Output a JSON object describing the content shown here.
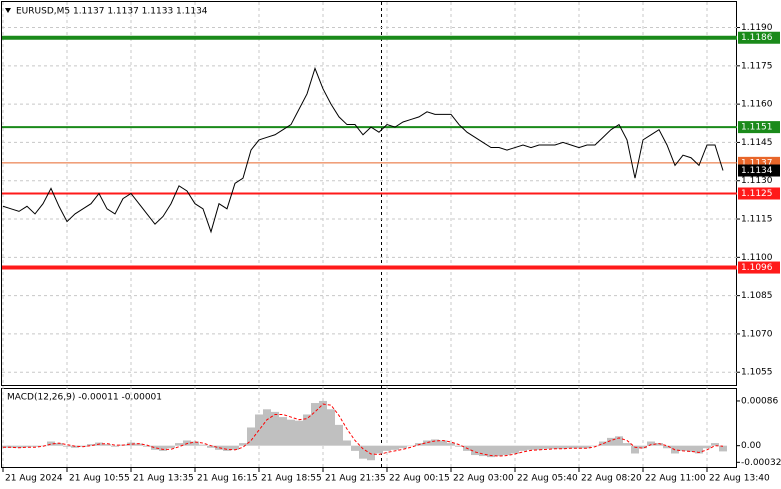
{
  "chart_data": [
    {
      "type": "line",
      "title": "EURUSD,M5  1.1137 1.1137 1.1133 1.1134",
      "color": "#000000",
      "grid": true,
      "categories": [
        "21 Aug 2024",
        null,
        null,
        null,
        null,
        null,
        null,
        null,
        "21 Aug 10:55",
        null,
        null,
        null,
        null,
        null,
        null,
        null,
        "21 Aug 13:35",
        null,
        null,
        null,
        null,
        null,
        null,
        null,
        "21 Aug 16:15",
        null,
        null,
        null,
        null,
        null,
        null,
        null,
        "21 Aug 18:55",
        null,
        null,
        null,
        null,
        null,
        null,
        null,
        "21 Aug 21:35",
        null,
        null,
        null,
        null,
        null,
        null,
        null,
        "22 Aug 00:15",
        null,
        null,
        null,
        null,
        null,
        null,
        null,
        "22 Aug 03:00",
        null,
        null,
        null,
        null,
        null,
        null,
        null,
        "22 Aug 05:40",
        null,
        null,
        null,
        null,
        null,
        null,
        null,
        "22 Aug 08:20",
        null,
        null,
        null,
        null,
        null,
        null,
        null,
        "22 Aug 11:00",
        null,
        null,
        null,
        null,
        null,
        null,
        null,
        "22 Aug 13:40",
        null,
        null
      ],
      "values": [
        1.112,
        1.1119,
        1.1118,
        1.112,
        1.1117,
        1.1121,
        1.1127,
        1.112,
        1.1114,
        1.1117,
        1.1119,
        1.1121,
        1.1125,
        1.1119,
        1.1117,
        1.1123,
        1.1125,
        1.1121,
        1.1117,
        1.1113,
        1.1116,
        1.1121,
        1.1128,
        1.1126,
        1.1121,
        1.1119,
        1.111,
        1.1121,
        1.1119,
        1.1129,
        1.1131,
        1.1142,
        1.1146,
        1.1147,
        1.1148,
        1.115,
        1.1152,
        1.1158,
        1.1164,
        1.1174,
        1.1166,
        1.116,
        1.1155,
        1.1152,
        1.1152,
        1.1148,
        1.1151,
        1.1149,
        1.1152,
        1.1151,
        1.1153,
        1.1154,
        1.1155,
        1.1157,
        1.1156,
        1.1156,
        1.1156,
        1.1152,
        1.1149,
        1.1147,
        1.1145,
        1.1143,
        1.1143,
        1.1142,
        1.1143,
        1.1144,
        1.1143,
        1.1144,
        1.1144,
        1.1144,
        1.1145,
        1.1144,
        1.1143,
        1.1144,
        1.1144,
        1.1147,
        1.115,
        1.1152,
        1.1146,
        1.1131,
        1.1146,
        1.1148,
        1.115,
        1.1144,
        1.1136,
        1.114,
        1.1139,
        1.1136,
        1.1144,
        1.1144,
        1.1134
      ],
      "ylim": [
        1.105,
        1.12
      ],
      "yticks": [
        {
          "value": 1.119,
          "label": "1.1190"
        },
        1.1175,
        {
          "value": 1.116,
          "label": "1.1160"
        },
        1.1145,
        {
          "value": 1.113,
          "label": "1.1130"
        },
        1.1115,
        {
          "value": 1.11,
          "label": "1.1100"
        },
        1.1085,
        {
          "value": 1.107,
          "label": "1.1070"
        },
        1.1055
      ],
      "levels": [
        {
          "value": 1.1186,
          "color": "#1a8a1a",
          "style": "thick"
        },
        {
          "value": 1.1151,
          "color": "#1a8a1a",
          "style": "normal"
        },
        {
          "value": 1.1137,
          "color": "#e8662a",
          "style": "thin"
        },
        {
          "value": 1.1134,
          "color": "#000000",
          "style": "none"
        },
        {
          "value": 1.1125,
          "color": "#ff1a1a",
          "style": "normal"
        },
        {
          "value": 1.1096,
          "color": "#ff1a1a",
          "style": "thick"
        }
      ]
    },
    {
      "type": "macd",
      "title": "MACD(12,26,9) -0.00011 -0.00001",
      "ylim": [
        -0.00041,
        0.00109
      ],
      "yticks": [
        0.00086,
        {
          "value": 0,
          "label": "0.00"
        },
        -0.00032
      ],
      "series": [
        {
          "color": "#c0c0c0",
          "style": "bar",
          "values": [
            -4e-05,
            -4e-05,
            -4e-05,
            -3e-05,
            -2e-05,
            0,
            8e-05,
            5e-05,
            -2e-05,
            -4e-05,
            -2e-05,
            3e-05,
            6e-05,
            3e-05,
            -2e-05,
            2e-05,
            6e-05,
            4e-05,
            -2e-05,
            -8e-05,
            -0.0001,
            -5e-05,
            5e-05,
            0.0001,
            8e-05,
            2e-05,
            -4e-05,
            -8e-05,
            -0.0001,
            -8e-05,
            5e-05,
            0.00035,
            0.0006,
            0.0007,
            0.00065,
            0.00055,
            0.0005,
            0.00048,
            0.0006,
            0.00082,
            0.00086,
            0.0007,
            0.0004,
            0.0001,
            -0.0001,
            -0.00025,
            -0.00028,
            -0.00015,
            -0.0001,
            -8e-05,
            -5e-05,
            0,
            5e-05,
            0.0001,
            0.00012,
            0.0001,
            5e-05,
            -2e-05,
            -0.0001,
            -0.00018,
            -0.0002,
            -0.00022,
            -0.0002,
            -0.00018,
            -0.00015,
            -0.0001,
            -8e-05,
            -8e-05,
            -6e-05,
            -6e-05,
            -6e-05,
            -5e-05,
            -5e-05,
            -5e-05,
            0,
            8e-05,
            0.00015,
            0.00018,
            5e-05,
            -0.00015,
            -5e-05,
            8e-05,
            5e-05,
            -5e-05,
            -0.00015,
            -0.0001,
            -0.00012,
            -0.00015,
            -5e-05,
            5e-05,
            -0.00011
          ]
        },
        {
          "color": "#ff0000",
          "style": "dashed-line",
          "values": [
            -3e-05,
            -3e-05,
            -4e-05,
            -3e-05,
            -3e-05,
            -1e-05,
            3e-05,
            5e-05,
            2e-05,
            -1e-05,
            -2e-05,
            0,
            3e-05,
            4e-05,
            1e-05,
            1e-05,
            3e-05,
            4e-05,
            1e-05,
            -4e-05,
            -7e-05,
            -7e-05,
            -2e-05,
            4e-05,
            7e-05,
            5e-05,
            0,
            -4e-05,
            -7e-05,
            -8e-05,
            -3e-05,
            0.0001,
            0.0003,
            0.0005,
            0.0006,
            0.0006,
            0.00055,
            0.0005,
            0.00052,
            0.00065,
            0.0008,
            0.00078,
            0.00058,
            0.00032,
            0.0001,
            -6e-05,
            -0.00016,
            -0.00017,
            -0.00013,
            -0.0001,
            -7e-05,
            -3e-05,
            2e-05,
            6e-05,
            9e-05,
            0.0001,
            7e-05,
            2e-05,
            -5e-05,
            -0.00012,
            -0.00016,
            -0.00019,
            -0.0002,
            -0.00019,
            -0.00016,
            -0.00012,
            -9e-05,
            -8e-05,
            -7e-05,
            -6e-05,
            -6e-05,
            -5e-05,
            -5e-05,
            -5e-05,
            -2e-05,
            4e-05,
            0.0001,
            0.00015,
            0.0001,
            -3e-05,
            -5e-05,
            2e-05,
            4e-05,
            0,
            -8e-05,
            -0.0001,
            -0.00011,
            -0.00013,
            -8e-05,
            0,
            -1e-05
          ]
        }
      ]
    }
  ]
}
